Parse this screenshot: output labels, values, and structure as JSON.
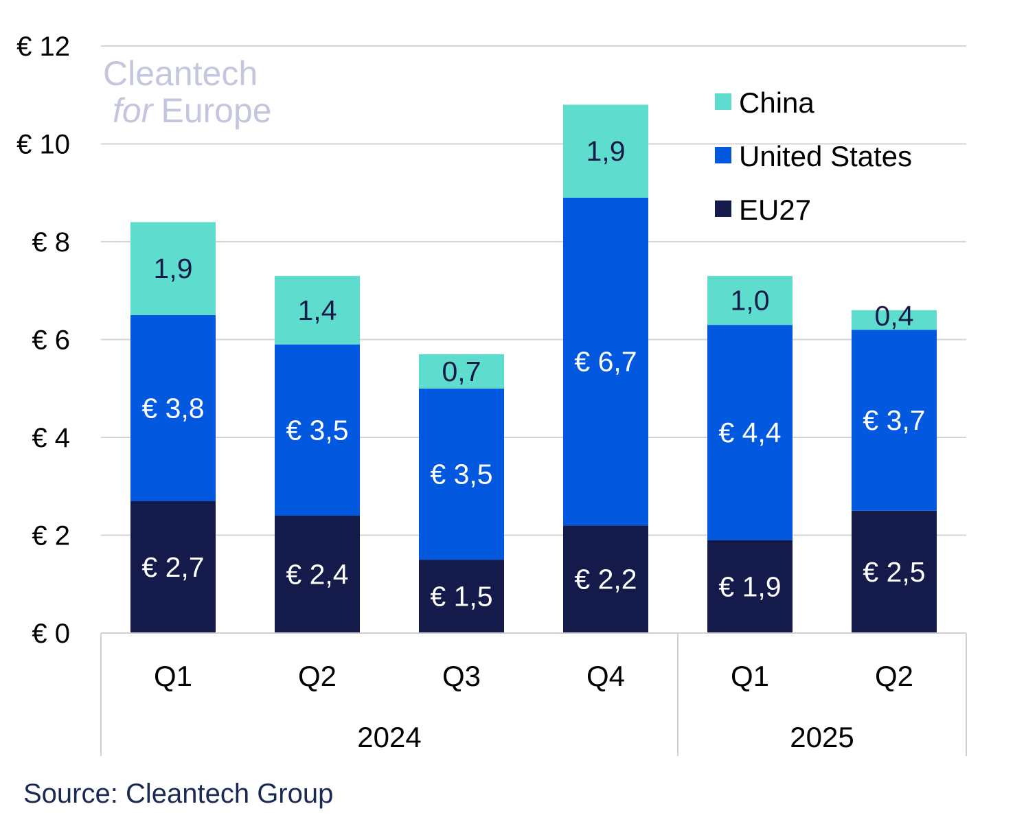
{
  "logo": {
    "line1": "Cleantech",
    "line2a": "for",
    "line2b": "Europe"
  },
  "source": "Source: Cleantech Group",
  "colors": {
    "China": "#5edccd",
    "United States": "#0259e0",
    "EU27": "#141a4a",
    "grid": "#d4d4d4"
  },
  "chart_data": {
    "type": "bar",
    "stacked": true,
    "categories": [
      "Q1",
      "Q2",
      "Q3",
      "Q4",
      "Q1",
      "Q2"
    ],
    "groups": [
      {
        "label": "2024",
        "categories": [
          0,
          1,
          2,
          3
        ]
      },
      {
        "label": "2025",
        "categories": [
          4,
          5
        ]
      }
    ],
    "series": [
      {
        "name": "EU27",
        "values": [
          2.7,
          2.4,
          1.5,
          2.2,
          1.9,
          2.5
        ],
        "labels": [
          "€ 2,7",
          "€ 2,4",
          "€ 1,5",
          "€ 2,2",
          "€ 1,9",
          "€ 2,5"
        ]
      },
      {
        "name": "United States",
        "values": [
          3.8,
          3.5,
          3.5,
          6.7,
          4.4,
          3.7
        ],
        "labels": [
          "€ 3,8",
          "€ 3,5",
          "€ 3,5",
          "€ 6,7",
          "€ 4,4",
          "€ 3,7"
        ]
      },
      {
        "name": "China",
        "values": [
          1.9,
          1.4,
          0.7,
          1.9,
          1.0,
          0.4
        ],
        "labels": [
          "1,9",
          "1,4",
          "0,7",
          "1,9",
          "1,0",
          "0,4"
        ]
      }
    ],
    "legend": [
      "China",
      "United States",
      "EU27"
    ],
    "legend_position": "top-right",
    "ylim": [
      0,
      12
    ],
    "yticks": [
      0,
      2,
      4,
      6,
      8,
      10,
      12
    ],
    "ytick_labels": [
      "€ 0",
      "€ 2",
      "€ 4",
      "€ 6",
      "€ 8",
      "€ 10",
      "€ 12"
    ],
    "grid": true
  }
}
